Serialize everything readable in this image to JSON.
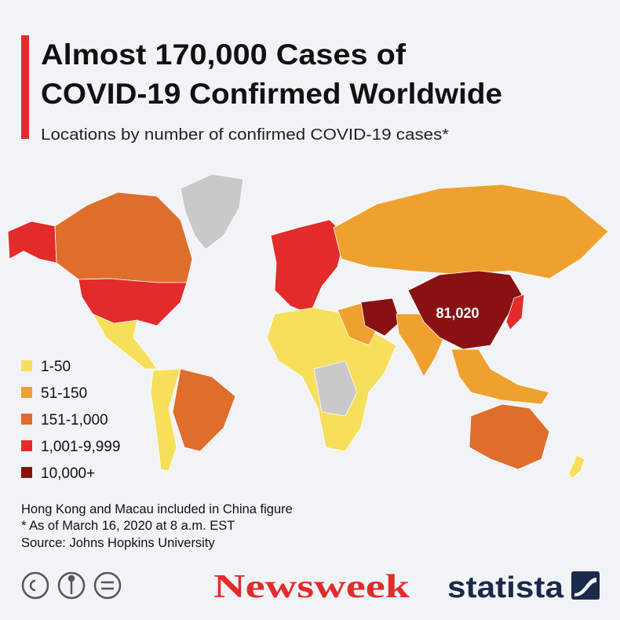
{
  "header": {
    "title_lines": [
      "Almost 170,000 Cases of",
      "COVID-19 Confirmed Worldwide"
    ],
    "subtitle": "Locations by number of confirmed COVID-19 cases*"
  },
  "legend": [
    {
      "label": "1-50",
      "color": "#f6df5a"
    },
    {
      "label": "51-150",
      "color": "#eea12f"
    },
    {
      "label": "151-1,000",
      "color": "#df6d2b"
    },
    {
      "label": "1,001-9,999",
      "color": "#e32b2b"
    },
    {
      "label": "10,000+",
      "color": "#8a1111"
    }
  ],
  "map": {
    "no_data_color": "#c9c9c9",
    "china_label": "81,020"
  },
  "notes": [
    "Hong Kong and Macau included in China figure",
    "* As of March 16, 2020 at 8 a.m. EST",
    "Source: Johns Hopkins University"
  ],
  "footer": {
    "publisher": "Newsweek",
    "brand": "statista"
  }
}
